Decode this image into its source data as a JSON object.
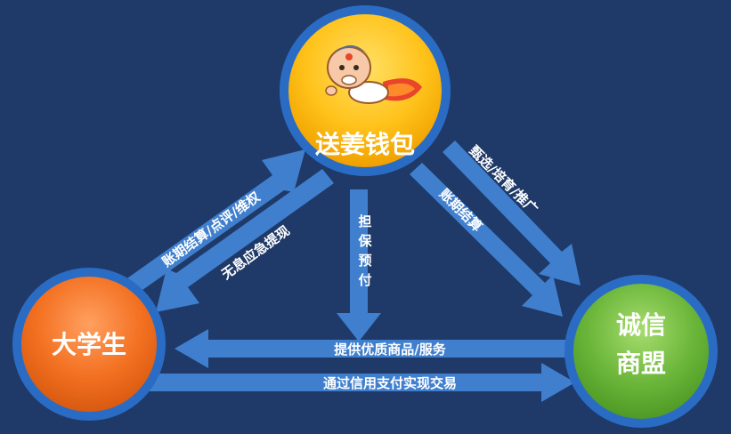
{
  "nodes": {
    "wallet": {
      "label": "送姜钱包",
      "color": "#ffc21a"
    },
    "student": {
      "label": "大学生",
      "color": "#f37021"
    },
    "merchant": {
      "label_line1": "诚信",
      "label_line2": "商盟",
      "color": "#6bb63a"
    }
  },
  "arrows": {
    "settle_review": "账期结算/点评/维权",
    "interest_free": "无息应急提现",
    "guarantee_line1": "担",
    "guarantee_line2": "保",
    "guarantee_line3": "预",
    "guarantee_line4": "付",
    "settlement": "账期结算",
    "screening": "甄选/培育/推广",
    "provide_goods": "提供优质商品/服务",
    "credit_payment": "通过信用支付实现交易"
  },
  "colors": {
    "background": "#1f3a68",
    "arrow": "#3f7fce",
    "ring": "#2a6cc4"
  }
}
